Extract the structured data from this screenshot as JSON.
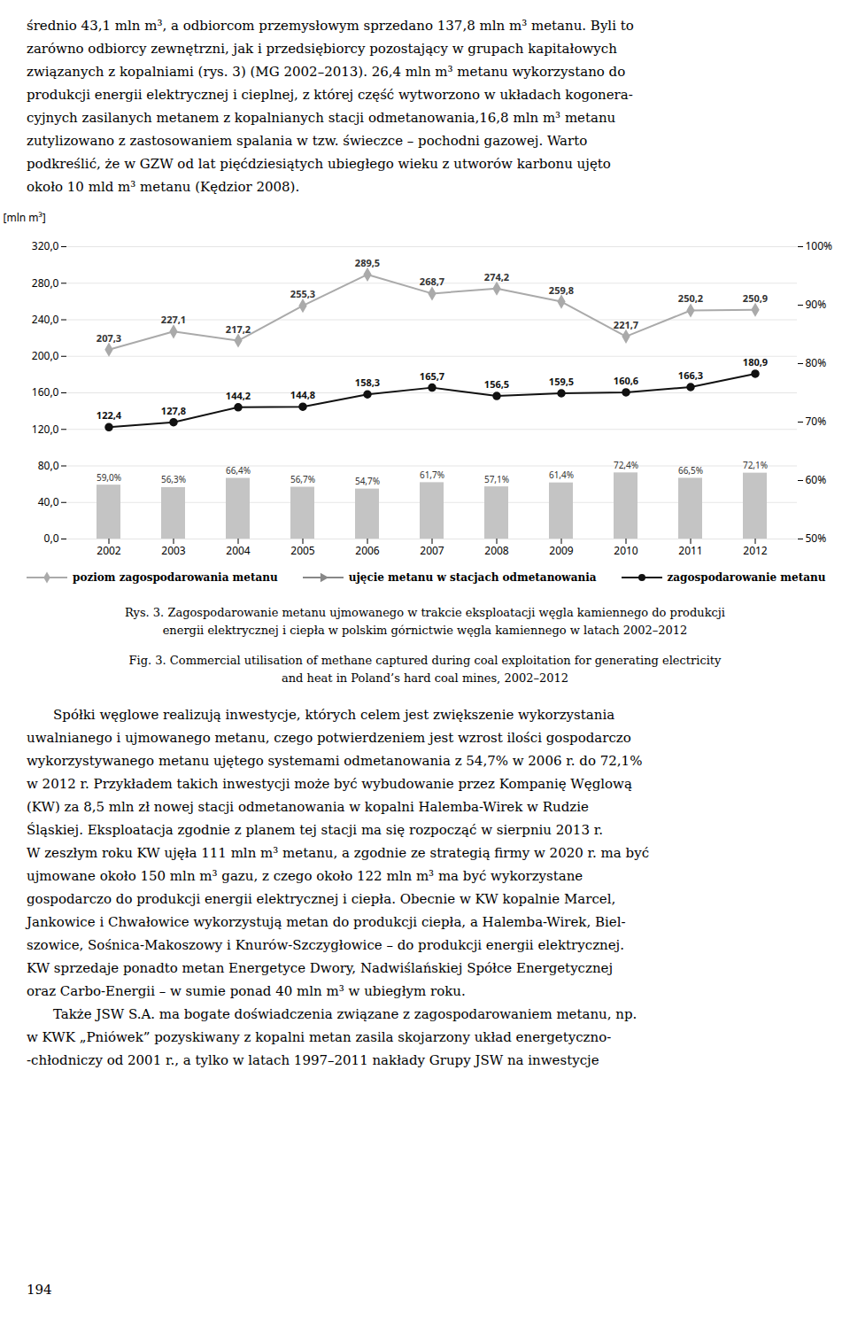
{
  "paragraph_above": [
    "średnio 43,1 mln m³, a odbiorcom przemysłowym sprzedano 137,8 mln m³ metanu. Byli to",
    "zarówno odbiorcy zewnętrzni, jak i przedsiębiorcy pozostający w grupach kapitałowych",
    "związanych z kopalniami (rys. 3) (MG 2002–2013). 26,4 mln m³ metanu wykorzystano do",
    "produkcji energii elektrycznej i cieplnej, z której część wytworzono w układach kogonera-",
    "cyjnych zasilanych metanem z kopalnianych stacji odmetanowania,16,8 mln m³ metanu",
    "zutylizowano z zastosowaniem spalania w tzw. świeczce – pochodni gazowej. Warto",
    "podkreślić, że w GZW od lat pięćdziesiątych ubiegłego wieku z utworów karbonu ujęto",
    "około 10 mld m³ metanu (Kędzior 2008)."
  ],
  "chart_data": {
    "type": "bar",
    "categories": [
      "2002",
      "2003",
      "2004",
      "2005",
      "2006",
      "2007",
      "2008",
      "2009",
      "2010",
      "2011",
      "2012"
    ],
    "series": [
      {
        "type": "bar",
        "color": "#c4c4c4",
        "values": [
          59.0,
          56.3,
          66.4,
          56.7,
          54.7,
          61.7,
          57.1,
          61.4,
          72.4,
          66.5,
          72.1
        ],
        "value_labels": [
          "59,0%",
          "56,3%",
          "66,4%",
          "56,7%",
          "54,7%",
          "61,7%",
          "57,1%",
          "61,4%",
          "72,4%",
          "66,5%",
          "72,1%"
        ]
      },
      {
        "type": "line",
        "name": "poziom zagospodarowania metanu",
        "color": "#aaaaaa",
        "marker": "diamond",
        "values": [
          207.3,
          227.1,
          217.2,
          255.3,
          289.5,
          268.7,
          274.2,
          259.8,
          221.7,
          250.2,
          250.9
        ],
        "value_labels": [
          "207,3",
          "227,1",
          "217,2",
          "255,3",
          "289,5",
          "268,7",
          "274,2",
          "259,8",
          "221,7",
          "250,2",
          "250,9"
        ]
      },
      {
        "type": "line",
        "name": "ujęcie metanu w stacjach odmetanowania",
        "color": "#888888",
        "marker": "triangle",
        "values": [
          null,
          null,
          null,
          null,
          null,
          null,
          null,
          null,
          null,
          null,
          null
        ]
      },
      {
        "type": "line",
        "name": "zagospodarowanie metanu",
        "color": "#111111",
        "marker": "circle",
        "values": [
          122.4,
          127.8,
          144.2,
          144.8,
          158.3,
          165.7,
          156.5,
          159.5,
          160.6,
          166.3,
          180.9
        ],
        "value_labels": [
          "122,4",
          "127,8",
          "144,2",
          "144,8",
          "158,3",
          "165,7",
          "156,5",
          "159,5",
          "160,6",
          "166,3",
          "180,9"
        ]
      }
    ],
    "ylabel": "[mln m³]",
    "ylim": [
      0.0,
      320.0
    ],
    "yticks": [
      {
        "value": 0.0,
        "label": "0,0"
      },
      {
        "value": 40.0,
        "label": "40,0"
      },
      {
        "value": 80.0,
        "label": "80,0"
      },
      {
        "value": 120.0,
        "label": "120,0"
      },
      {
        "value": 160.0,
        "label": "160,0"
      },
      {
        "value": 200.0,
        "label": "200,0"
      },
      {
        "value": 240.0,
        "label": "240,0"
      },
      {
        "value": 280.0,
        "label": "280,0"
      },
      {
        "value": 320.0,
        "label": "320,0"
      }
    ],
    "y2lim": [
      50,
      100
    ],
    "y2ticks": [
      {
        "value": 50,
        "label": "50%"
      },
      {
        "value": 60,
        "label": "60%"
      },
      {
        "value": 70,
        "label": "70%"
      },
      {
        "value": 80,
        "label": "80%"
      },
      {
        "value": 90,
        "label": "90%"
      },
      {
        "value": 100,
        "label": "100%"
      }
    ],
    "grid": true,
    "legend": "bottom",
    "data_labels": true
  },
  "caption": [
    "Rys. 3. Zagospodarowanie metanu ujmowanego w trakcie eksploatacji węgla kamiennego do produkcji",
    "energii elektrycznej i ciepła w polskim górnictwie węgla kamiennego w latach 2002–2012",
    "Fig. 3. Commercial utilisation of methane captured during coal exploitation for generating electricity",
    "and heat in Poland’s hard coal mines, 2002–2012"
  ],
  "paragraph_below": [
    "\tSpółki węglowe realizują inwestycje, których celem jest zwiększenie wykorzystania",
    "uwalnianego i ujmowanego metanu, czego potwierdzeniem jest wzrost ilości gospodarczo",
    "wykorzystywanego metanu ujętego systemami odmetanowania z 54,7% w 2006 r. do 72,1%",
    "w 2012 r. Przykładem takich inwestycji może być wybudowanie przez Kompanię Węglową",
    "(KW) za 8,5 mln zł nowej stacji odmetanowania w kopalni Halemba-Wirek w Rudzie",
    "Śląskiej. Eksploatacja zgodnie z planem tej stacji ma się rozpocząć w sierpniu 2013 r.",
    "W zeszłym roku KW ujęła 111 mln m³ metanu, a zgodnie ze strategią firmy w 2020 r. ma być",
    "ujmowane około 150 mln m³ gazu, z czego około 122 mln m³ ma być wykorzystane",
    "gospodarczo do produkcji energii elektrycznej i ciepła. Obecnie w KW kopalnie Marcel,",
    "Jankowice i Chwałowice wykorzystują metan do produkcji ciepła, a Halemba-Wirek, Biel-",
    "szowice, Sośnica-Makoszowy i Knurów-Szczygłowice – do produkcji energii elektrycznej.",
    "KW sprzedaje ponadto metan Energetyce Dwory, Nadwiślańskiej Spółce Energetycznej",
    "oraz Carbo-Energii – w sumie ponad 40 mln m³ w ubiegłym roku.",
    "\tTakże JSW S.A. ma bogate doświadczenia związane z zagospodarowaniem metanu, np.",
    "w KWK „Pniówek” pozyskiwany z kopalni metan zasila skojarzony układ energetyczno-",
    "-chłodniczy od 2001 r., a tylko w latach 1997–2011 nakłady Grupy JSW na inwestycje"
  ],
  "page_number": "194"
}
